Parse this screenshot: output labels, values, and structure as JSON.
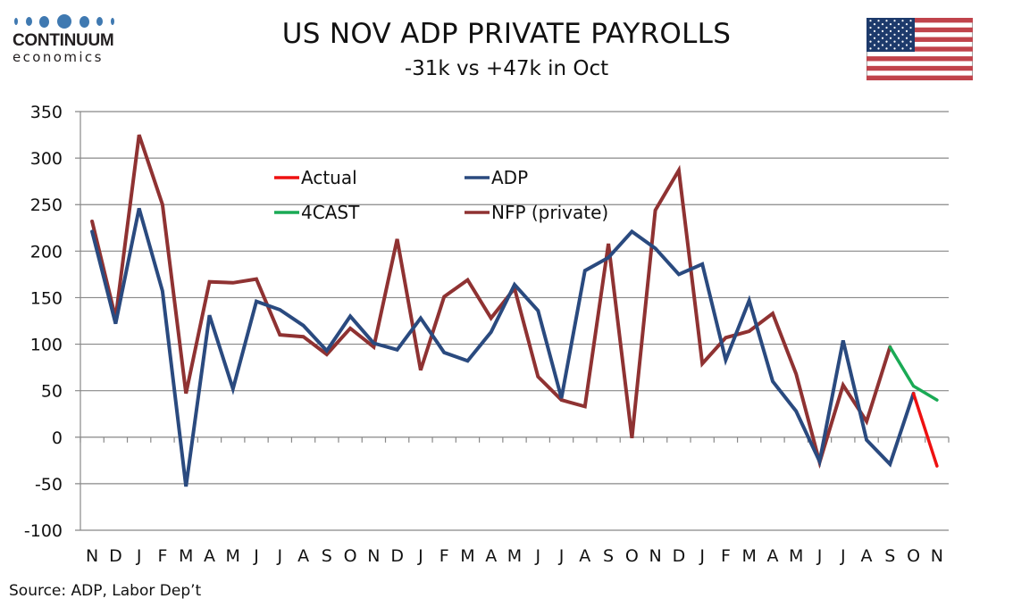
{
  "header": {
    "logo_top": "CONTINUUM",
    "logo_bottom": "economics",
    "title": "US NOV ADP PRIVATE PAYROLLS",
    "subtitle": "-31k vs +47k in Oct",
    "flag_icon": "us-flag-icon"
  },
  "footer": {
    "source": "Source: ADP, Labor Dep’t"
  },
  "colors": {
    "actual": "#ee1111",
    "adp": "#2a4a7f",
    "forecast": "#1aaa55",
    "nfp": "#8f3232",
    "grid": "#888888",
    "logo_blue": "#3f79b1"
  },
  "chart_data": {
    "type": "line",
    "title": "US NOV ADP PRIVATE PAYROLLS",
    "subtitle": "-31k vs +47k in Oct",
    "xlabel": "",
    "ylabel": "",
    "ylim": [
      -100,
      350
    ],
    "yticks": [
      -100,
      -50,
      0,
      50,
      100,
      150,
      200,
      250,
      300,
      350
    ],
    "grid": true,
    "legend_position": "top-center",
    "categories": [
      "N",
      "D",
      "J",
      "F",
      "M",
      "A",
      "M",
      "J",
      "J",
      "A",
      "S",
      "O",
      "N",
      "D",
      "J",
      "F",
      "M",
      "A",
      "M",
      "J",
      "J",
      "A",
      "S",
      "O",
      "N",
      "D",
      "J",
      "F",
      "M",
      "A",
      "M",
      "J",
      "J",
      "A",
      "S",
      "O",
      "N"
    ],
    "series": [
      {
        "name": "ADP",
        "key": "adp",
        "values": [
          221,
          122,
          246,
          157,
          -53,
          131,
          52,
          146,
          137,
          120,
          93,
          130,
          101,
          94,
          128,
          91,
          82,
          113,
          164,
          136,
          42,
          179,
          193,
          221,
          203,
          175,
          186,
          83,
          147,
          60,
          28,
          -26,
          104,
          -3,
          -29,
          47,
          null
        ]
      },
      {
        "name": "NFP (private)",
        "key": "nfp",
        "values": [
          232,
          128,
          325,
          250,
          47,
          167,
          166,
          170,
          110,
          108,
          89,
          117,
          97,
          213,
          72,
          151,
          169,
          128,
          160,
          65,
          40,
          33,
          208,
          -1,
          244,
          287,
          79,
          107,
          114,
          133,
          68,
          -27,
          56,
          17,
          97,
          null,
          null
        ]
      },
      {
        "name": "4CAST",
        "key": "forecast",
        "values": [
          null,
          null,
          null,
          null,
          null,
          null,
          null,
          null,
          null,
          null,
          null,
          null,
          null,
          null,
          null,
          null,
          null,
          null,
          null,
          null,
          null,
          null,
          null,
          null,
          null,
          null,
          null,
          null,
          null,
          null,
          null,
          null,
          null,
          null,
          97,
          55,
          40
        ]
      },
      {
        "name": "Actual",
        "key": "actual",
        "values": [
          null,
          null,
          null,
          null,
          null,
          null,
          null,
          null,
          null,
          null,
          null,
          null,
          null,
          null,
          null,
          null,
          null,
          null,
          null,
          null,
          null,
          null,
          null,
          null,
          null,
          null,
          null,
          null,
          null,
          null,
          null,
          null,
          null,
          null,
          null,
          47,
          -31
        ]
      }
    ],
    "legend": [
      {
        "label": "Actual",
        "key": "actual"
      },
      {
        "label": "ADP",
        "key": "adp"
      },
      {
        "label": "4CAST",
        "key": "forecast"
      },
      {
        "label": "NFP (private)",
        "key": "nfp"
      }
    ]
  }
}
